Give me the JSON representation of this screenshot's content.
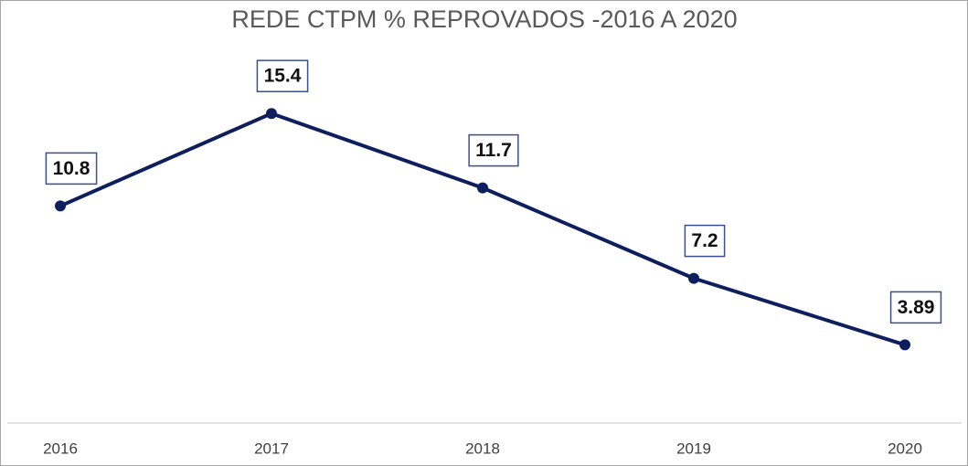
{
  "chart_data": {
    "type": "line",
    "title": "REDE CTPM % REPROVADOS -2016 A 2020",
    "categories": [
      "2016",
      "2017",
      "2018",
      "2019",
      "2020"
    ],
    "values": [
      10.8,
      15.4,
      11.7,
      7.2,
      3.89
    ],
    "color": "#0d1f5c",
    "ylim": [
      0,
      20
    ]
  }
}
